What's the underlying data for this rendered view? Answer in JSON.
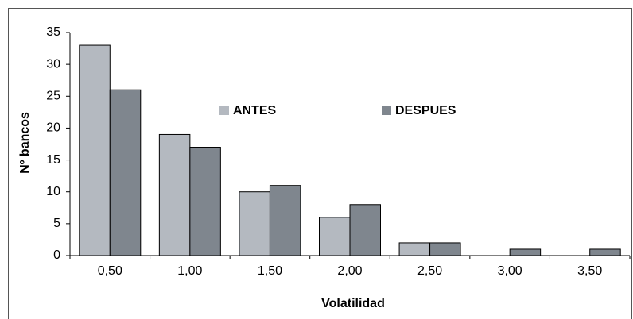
{
  "chart_data": {
    "type": "bar",
    "categories": [
      "0,50",
      "1,00",
      "1,50",
      "2,00",
      "2,50",
      "3,00",
      "3,50"
    ],
    "series": [
      {
        "name": "ANTES",
        "color": "#b4b9c0",
        "values": [
          33,
          19,
          10,
          6,
          2,
          0,
          0
        ]
      },
      {
        "name": "DESPUES",
        "color": "#7f868e",
        "values": [
          26,
          17,
          11,
          8,
          2,
          1,
          1
        ]
      }
    ],
    "xlabel": "Volatilidad",
    "ylabel": "Nº bancos",
    "ylim": [
      0,
      35
    ],
    "yticks": [
      0,
      5,
      10,
      15,
      20,
      25,
      30,
      35
    ],
    "grid": false,
    "legend": "top"
  }
}
